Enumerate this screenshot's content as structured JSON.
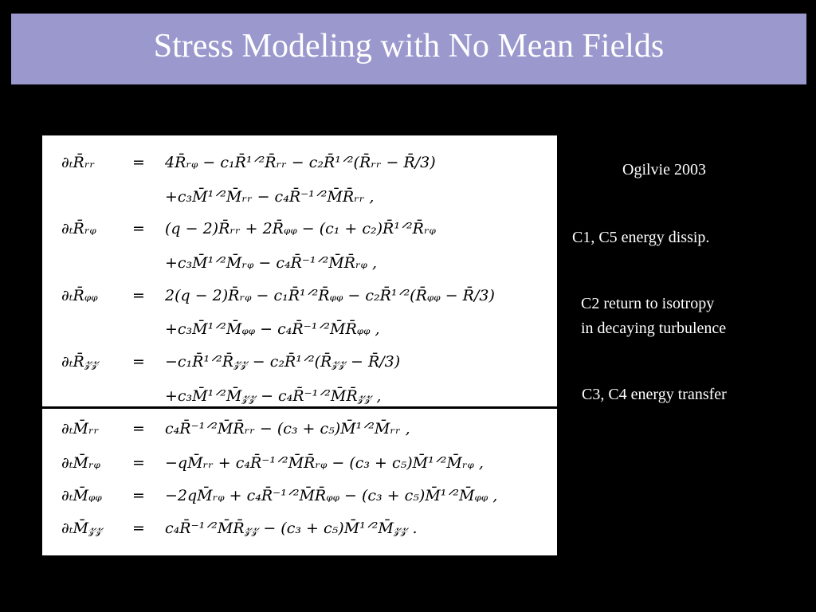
{
  "slide": {
    "title": "Stress Modeling with No Mean Fields"
  },
  "equations": [
    {
      "lhs": "∂ₜR̄ᵣᵣ",
      "op": "=",
      "rhs": "4R̄ᵣᵩ − c₁R̄¹ᐟ²R̄ᵣᵣ − c₂R̄¹ᐟ²(R̄ᵣᵣ − R̄/3)"
    },
    {
      "lhs": "",
      "op": "",
      "rhs": "+c₃M̄¹ᐟ²M̄ᵣᵣ − c₄R̄⁻¹ᐟ²M̄R̄ᵣᵣ ,"
    },
    {
      "lhs": "∂ₜR̄ᵣᵩ",
      "op": "=",
      "rhs": "(q − 2)R̄ᵣᵣ + 2R̄ᵩᵩ − (c₁ + c₂)R̄¹ᐟ²R̄ᵣᵩ"
    },
    {
      "lhs": "",
      "op": "",
      "rhs": "+c₃M̄¹ᐟ²M̄ᵣᵩ − c₄R̄⁻¹ᐟ²M̄R̄ᵣᵩ ,"
    },
    {
      "lhs": "∂ₜR̄ᵩᵩ",
      "op": "=",
      "rhs": "2(q − 2)R̄ᵣᵩ − c₁R̄¹ᐟ²R̄ᵩᵩ − c₂R̄¹ᐟ²(R̄ᵩᵩ − R̄/3)"
    },
    {
      "lhs": "",
      "op": "",
      "rhs": "+c₃M̄¹ᐟ²M̄ᵩᵩ − c₄R̄⁻¹ᐟ²M̄R̄ᵩᵩ ,"
    },
    {
      "lhs": "∂ₜR̄𝓏𝓏",
      "op": "=",
      "rhs": "−c₁R̄¹ᐟ²R̄𝓏𝓏 − c₂R̄¹ᐟ²(R̄𝓏𝓏 − R̄/3)"
    },
    {
      "lhs": "",
      "op": "",
      "rhs": "+c₃M̄¹ᐟ²M̄𝓏𝓏 − c₄R̄⁻¹ᐟ²M̄R̄𝓏𝓏 ,"
    },
    {
      "lhs": "∂ₜM̄ᵣᵣ",
      "op": "=",
      "rhs": "c₄R̄⁻¹ᐟ²M̄R̄ᵣᵣ − (c₃ + c₅)M̄¹ᐟ²M̄ᵣᵣ ,"
    },
    {
      "lhs": "∂ₜM̄ᵣᵩ",
      "op": "=",
      "rhs": "−qM̄ᵣᵣ + c₄R̄⁻¹ᐟ²M̄R̄ᵣᵩ − (c₃ + c₅)M̄¹ᐟ²M̄ᵣᵩ ,"
    },
    {
      "lhs": "∂ₜM̄ᵩᵩ",
      "op": "=",
      "rhs": "−2qM̄ᵣᵩ + c₄R̄⁻¹ᐟ²M̄R̄ᵩᵩ − (c₃ + c₅)M̄¹ᐟ²M̄ᵩᵩ ,"
    },
    {
      "lhs": "∂ₜM̄𝓏𝓏",
      "op": "=",
      "rhs": "c₄R̄⁻¹ᐟ²M̄R̄𝓏𝓏 − (c₃ + c₅)M̄¹ᐟ²M̄𝓏𝓏 ."
    }
  ],
  "notes": {
    "reference": "Ogilvie 2003",
    "dissipation": "C1, C5 energy dissip.",
    "isotropy_line1": "C2 return to isotropy",
    "isotropy_line2": "in decaying turbulence",
    "transfer": "C3, C4 energy transfer"
  }
}
